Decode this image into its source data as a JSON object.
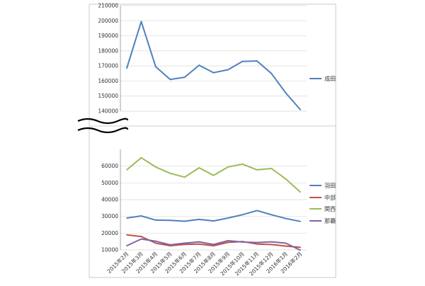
{
  "chart_data": [
    {
      "type": "line",
      "panel": "top",
      "categories": [
        "2015年2月",
        "2015年3月",
        "2015年4月",
        "2015年5月",
        "2015年6月",
        "2015年7月",
        "2015年8月",
        "2015年9月",
        "2015年10月",
        "2015年11月",
        "2015年12月",
        "2016年1月",
        "2016年2月"
      ],
      "ylim": [
        140000,
        210000
      ],
      "yticks": [
        140000,
        150000,
        160000,
        170000,
        180000,
        190000,
        200000,
        210000
      ],
      "grid": true,
      "legend_position": "right",
      "series": [
        {
          "name": "成田",
          "color": "#4f81bd",
          "values": [
            168500,
            199500,
            169500,
            161000,
            162500,
            170500,
            165500,
            167500,
            173000,
            173300,
            165000,
            152000,
            141000
          ]
        }
      ]
    },
    {
      "type": "line",
      "panel": "bottom",
      "categories": [
        "2015年2月",
        "2015年3月",
        "2015年4月",
        "2015年5月",
        "2015年6月",
        "2015年7月",
        "2015年8月",
        "2015年9月",
        "2015年10月",
        "2015年11月",
        "2015年12月",
        "2016年1月",
        "2016年2月"
      ],
      "ylim": [
        10000,
        70000
      ],
      "yticks": [
        10000,
        20000,
        30000,
        40000,
        50000,
        60000
      ],
      "grid": true,
      "legend_position": "right",
      "series": [
        {
          "name": "羽田",
          "color": "#4f81bd",
          "values": [
            29000,
            30300,
            27800,
            27600,
            27100,
            28200,
            27300,
            29000,
            31000,
            33500,
            31000,
            28700,
            27000
          ]
        },
        {
          "name": "中部",
          "color": "#c0504d",
          "values": [
            19000,
            18000,
            14000,
            12500,
            13300,
            13500,
            12500,
            14500,
            15000,
            13500,
            13200,
            12300,
            11500
          ]
        },
        {
          "name": "関西",
          "color": "#9bbb59",
          "values": [
            57800,
            65000,
            59500,
            55700,
            53400,
            59000,
            54500,
            59500,
            61200,
            57800,
            58600,
            52300,
            44500
          ]
        },
        {
          "name": "那覇",
          "color": "#8064a2",
          "values": [
            12500,
            16500,
            15200,
            13000,
            14000,
            14800,
            13200,
            15500,
            14700,
            14400,
            14800,
            14000,
            9800
          ]
        }
      ]
    }
  ]
}
